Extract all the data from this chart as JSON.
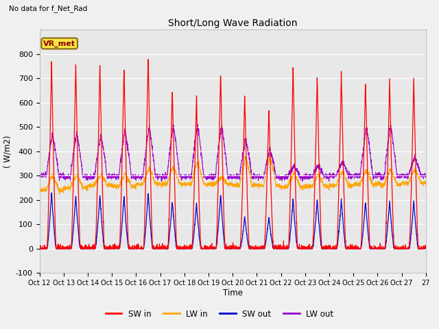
{
  "title": "Short/Long Wave Radiation",
  "xlabel": "Time",
  "ylabel": "( W/m2)",
  "ylim": [
    -100,
    900
  ],
  "yticks": [
    -100,
    0,
    100,
    200,
    300,
    400,
    500,
    600,
    700,
    800
  ],
  "plot_bg_color": "#e8e8e8",
  "fig_bg_color": "#f0f0f0",
  "text_no_data": "No data for f_Net_Rad",
  "vr_met_label": "VR_met",
  "legend_entries": [
    "SW in",
    "LW in",
    "SW out",
    "LW out"
  ],
  "sw_in_color": "#ff0000",
  "lw_in_color": "#ffa500",
  "sw_out_color": "#0000cd",
  "lw_out_color": "#9900cc",
  "num_days": 16,
  "xtick_labels": [
    "Oct 12",
    "Oct 13",
    "Oct 14",
    "Oct 15",
    "Oct 16",
    "Oct 17",
    "Oct 18",
    "Oct 19",
    "Oct 20",
    "Oct 21",
    "Oct 22",
    "Oct 23",
    "Oct 24",
    "Oct 25",
    "Oct 26",
    "Oct 27"
  ],
  "grid_color": "#ffffff",
  "sw_in_peaks": [
    770,
    755,
    760,
    750,
    790,
    660,
    625,
    730,
    630,
    580,
    750,
    705,
    720,
    695,
    695,
    695
  ],
  "sw_out_peaks": [
    230,
    215,
    220,
    220,
    230,
    195,
    185,
    225,
    130,
    130,
    205,
    200,
    200,
    195,
    195,
    195
  ],
  "lw_in_night": [
    240,
    250,
    260,
    255,
    265,
    265,
    265,
    265,
    260,
    260,
    255,
    255,
    260,
    265,
    265,
    270
  ],
  "lw_in_day_add": [
    60,
    55,
    45,
    50,
    65,
    70,
    90,
    30,
    115,
    120,
    55,
    50,
    55,
    55,
    60,
    55
  ],
  "lw_out_night": [
    300,
    295,
    295,
    295,
    295,
    295,
    295,
    295,
    295,
    295,
    295,
    295,
    300,
    300,
    300,
    300
  ],
  "lw_out_day_add": [
    170,
    185,
    175,
    195,
    205,
    215,
    215,
    215,
    155,
    115,
    45,
    45,
    55,
    200,
    210,
    75
  ]
}
